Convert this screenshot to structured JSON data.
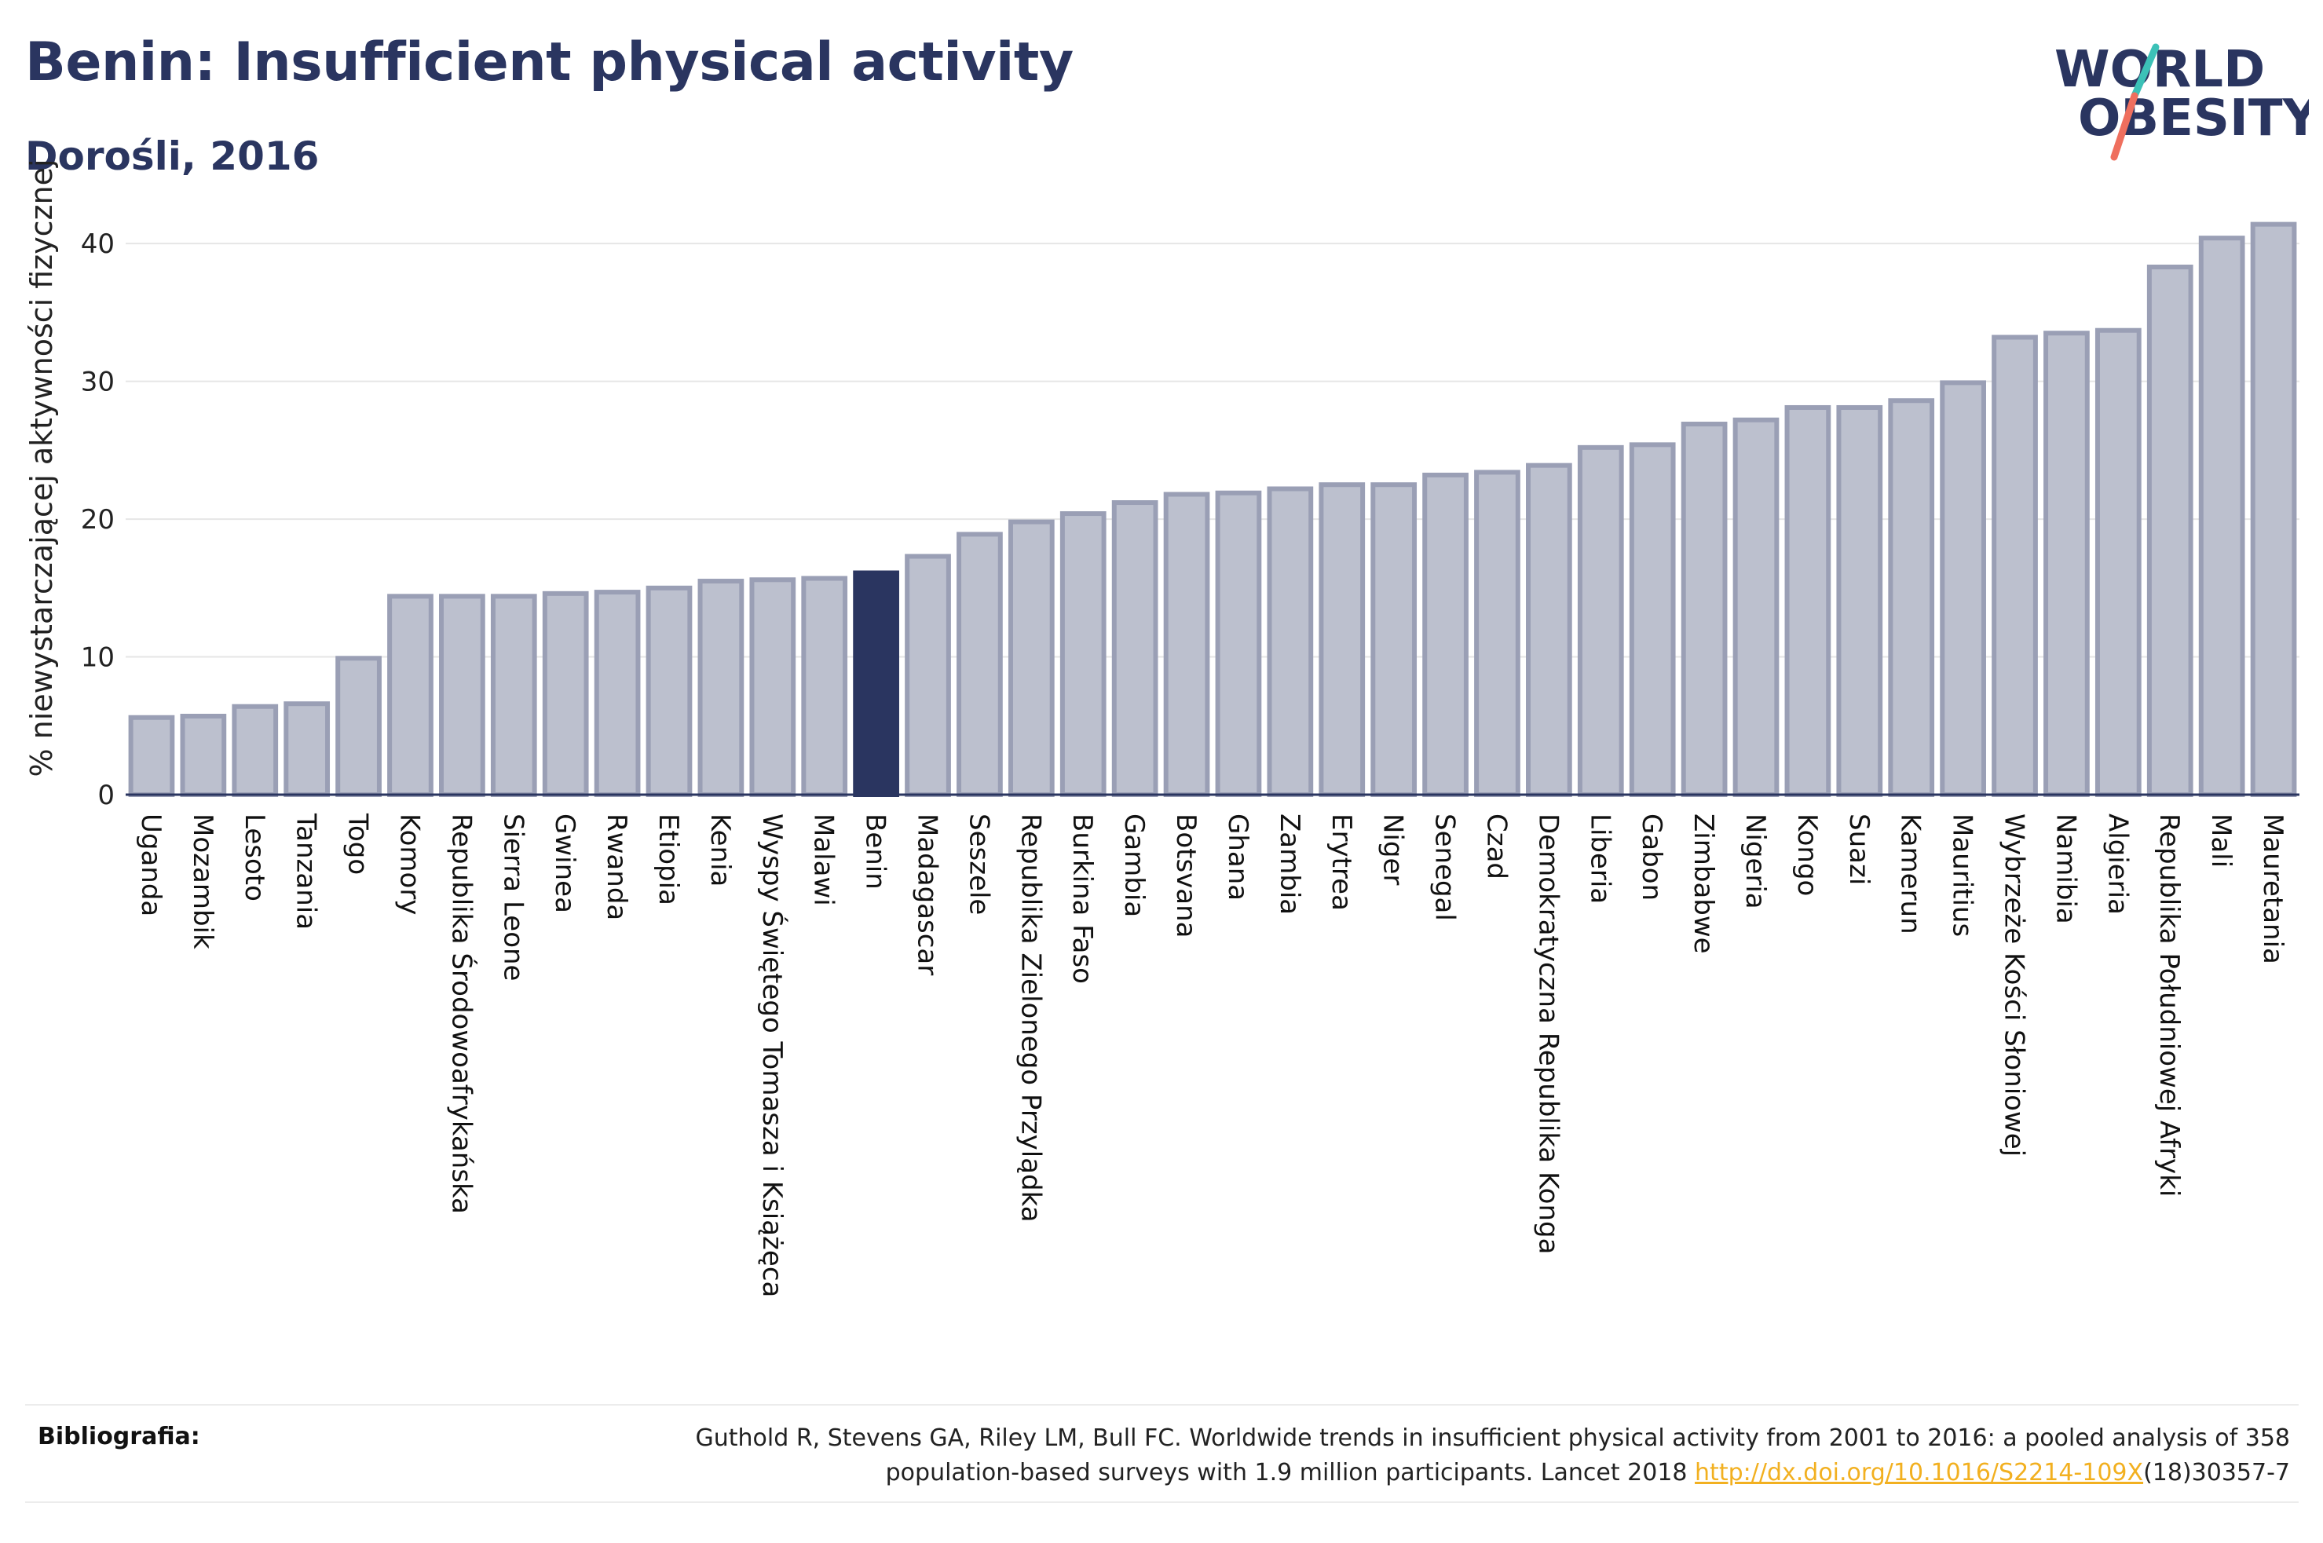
{
  "header": {
    "title": "Benin: Insufficient physical activity",
    "subtitle": "Dorośli, 2016"
  },
  "logo": {
    "line1": "WORLD",
    "line2": "OBESITY",
    "colors": {
      "text": "#2a3560",
      "slash_teal": "#3cc1b7",
      "slash_coral": "#ef6f5e"
    }
  },
  "colors": {
    "bar_fill": "#bcc0ce",
    "bar_stroke": "#9a9fb5",
    "highlight_fill": "#2a3560",
    "grid": "#e6e6e6",
    "axis": "#2a3560"
  },
  "chart_data": {
    "type": "bar",
    "ylabel": "% niewystarczającej aktywności fizycznej",
    "ylim": [
      0,
      44
    ],
    "yticks": [
      0,
      10,
      20,
      30,
      40
    ],
    "grid": true,
    "highlight": "Benin",
    "categories": [
      "Uganda",
      "Mozambik",
      "Lesoto",
      "Tanzania",
      "Togo",
      "Komory",
      "Republika Środowoafrykańska",
      "Sierra Leone",
      "Gwinea",
      "Rwanda",
      "Etiopia",
      "Kenia",
      "Wyspy Świętego Tomasza i Książęca",
      "Malawi",
      "Benin",
      "Madagascar",
      "Seszele",
      "Republika Zielonego Przylądka",
      "Burkina Faso",
      "Gambia",
      "Botsvana",
      "Ghana",
      "Zambia",
      "Erytrea",
      "Niger",
      "Senegal",
      "Czad",
      "Demokratyczna Republika Konga",
      "Liberia",
      "Gabon",
      "Zimbabwe",
      "Nigeria",
      "Kongo",
      "Suazi",
      "Kamerun",
      "Mauritius",
      "Wybrzeże Kości Słoniowej",
      "Namibia",
      "Algieria",
      "Republika Południowej Afryki",
      "Mali",
      "Mauretania"
    ],
    "values": [
      5.6,
      5.7,
      6.4,
      6.6,
      9.9,
      14.4,
      14.4,
      14.4,
      14.6,
      14.7,
      15.0,
      15.5,
      15.6,
      15.7,
      16.1,
      17.3,
      18.9,
      19.8,
      20.4,
      21.2,
      21.8,
      21.9,
      22.2,
      22.5,
      22.5,
      23.2,
      23.4,
      23.9,
      25.2,
      25.4,
      26.9,
      27.2,
      28.1,
      28.1,
      28.6,
      29.9,
      33.2,
      33.5,
      33.7,
      38.3,
      40.4,
      41.4
    ]
  },
  "bibliography": {
    "label": "Bibliografia:",
    "text_line1": "Guthold R, Stevens GA, Riley LM, Bull FC. Worldwide trends in insufficient physical activity from 2001 to 2016: a pooled analysis of 358",
    "text_line2_pre": "population-based surveys with 1.9 million participants. Lancet 2018 ",
    "link": "http://dx.doi.org/10.1016/S2214-109X",
    "text_line2_post": "(18)30357-7"
  }
}
